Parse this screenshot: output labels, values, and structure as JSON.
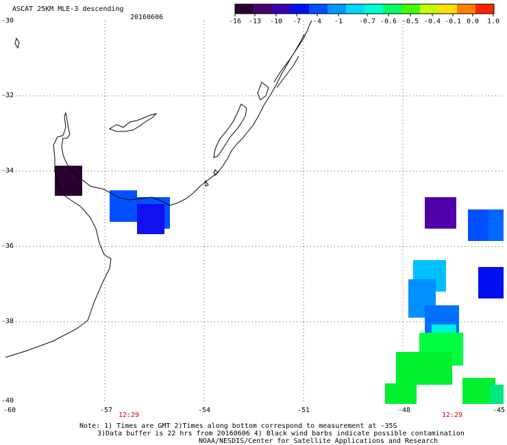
{
  "header": {
    "title": "ASCAT 25KM MLE-3 descending",
    "date": "20160606"
  },
  "colorbar": {
    "labels": [
      "-16",
      "-13",
      "-10",
      "-7",
      "-4",
      "-1",
      "-0.7",
      "-0.6",
      "-0.5",
      "-0.4",
      "-0.1",
      "0.0",
      "1.0"
    ],
    "colors": [
      "#2a0030",
      "#4a0070",
      "#3a00b0",
      "#0010f0",
      "#0050ff",
      "#0098ff",
      "#00d8ff",
      "#00ffd0",
      "#00ff60",
      "#40ff00",
      "#c0ff00",
      "#ffe000",
      "#ff8000",
      "#ff2000"
    ]
  },
  "axes": {
    "lat_labels": [
      "-30",
      "-32",
      "-34",
      "-36",
      "-38",
      "-40"
    ],
    "lon_labels": [
      "-60",
      "-57",
      "-54",
      "-51",
      "-48",
      "-45"
    ],
    "grid": "dotted"
  },
  "times": [
    "12:29",
    "12:29"
  ],
  "notes": {
    "line1": "Note: 1) Times are GMT 2)Times along bottom correspond to measurement at -35S",
    "line2": "3)Data buffer is 22 hrs from 20160606 4) Black wind barbs indicate possible contamination",
    "line3": "NOAA/NESDIS/Center for Satellite Applications and Research"
  }
}
